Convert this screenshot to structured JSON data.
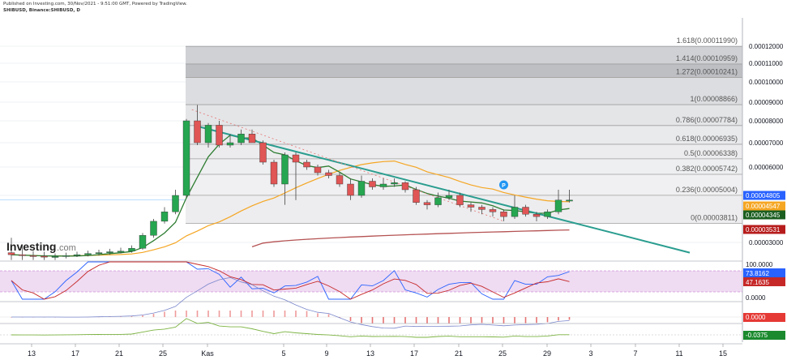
{
  "header": {
    "published_line": "Published on Investing.com, 30/Nov/2021 - 9:51:00 GMT, Powered by TradingView.",
    "symbol_line": "SHIBUSD, Binance:SHIBUSD, D"
  },
  "logo": {
    "name": "Investing",
    "suffix": ".com"
  },
  "price_axis": {
    "labels": [
      "0.00012000",
      "0.00011000",
      "0.00010000",
      "0.00009000",
      "0.00008000",
      "0.00007000",
      "0.00006000",
      "0.00005000",
      "0.00003000"
    ],
    "ticks": [
      0.00012,
      0.00011,
      0.0001,
      9e-05,
      8e-05,
      7e-05,
      6e-05,
      5e-05,
      3e-05
    ]
  },
  "price_tags": [
    {
      "label": "0.00004805",
      "value": 4.805e-05,
      "color": "#2962ff"
    },
    {
      "label": "0.00004547",
      "value": 4.547e-05,
      "color": "#f5a623"
    },
    {
      "label": "0.00004345",
      "value": 4.345e-05,
      "color": "#1b5e20"
    },
    {
      "label": "0.00003531",
      "value": 3.531e-05,
      "color": "#b71c1c"
    }
  ],
  "date_axis": {
    "labels": [
      "13",
      "17",
      "21",
      "25",
      "Kas",
      "5",
      "9",
      "13",
      "17",
      "21",
      "25",
      "29",
      "3",
      "7",
      "11",
      "15"
    ]
  },
  "fib": {
    "levels": [
      {
        "label": "1.618(0.00011990)",
        "value": 0.0001199
      },
      {
        "label": "1.414(0.00010959)",
        "value": 0.00010959
      },
      {
        "label": "1.272(0.00010241)",
        "value": 0.00010241
      },
      {
        "label": "1(0.00008866)",
        "value": 8.866e-05
      },
      {
        "label": "0.786(0.00007784)",
        "value": 7.784e-05
      },
      {
        "label": "0.618(0.00006935)",
        "value": 6.935e-05
      },
      {
        "label": "0.5(0.00006338)",
        "value": 6.338e-05
      },
      {
        "label": "0.382(0.00005742)",
        "value": 5.742e-05
      },
      {
        "label": "0.236(0.00005004)",
        "value": 5.004e-05
      },
      {
        "label": "0(0.00003811)",
        "value": 3.811e-05
      }
    ]
  },
  "marker": {
    "label": "P",
    "color": "#2196f3"
  },
  "rsi": {
    "labels": [
      "100.0000",
      "73.8162",
      "47.1635",
      "0.0000"
    ],
    "k": 73.8162,
    "d": 47.1635,
    "colors": [
      "#2962ff",
      "#c62828"
    ]
  },
  "macd": {
    "label": "0.0000",
    "value": 0.0,
    "color": "#e53935"
  },
  "osc": {
    "label": "-0.0375",
    "value": -0.0375,
    "color": "#1b8a2e"
  },
  "colors": {
    "up": "#26a650",
    "down": "#e05555",
    "trendline": "#2a9d8f",
    "ma_short": "#2e7d32",
    "ma_mid": "#f5a623",
    "ma_long": "#b55252"
  },
  "chart_data": {
    "type": "candlestick",
    "symbol": "SHIBUSD",
    "timeframe": "D",
    "ylim": [
      2e-05,
      0.00012
    ],
    "x": [
      "10",
      "11",
      "12",
      "13",
      "14",
      "15",
      "16",
      "17",
      "18",
      "19",
      "20",
      "21",
      "22",
      "23",
      "24",
      "25",
      "26",
      "27",
      "28",
      "29",
      "30",
      "31",
      "Kas",
      "2",
      "3",
      "4",
      "5",
      "6",
      "7",
      "8",
      "9",
      "10",
      "11",
      "12",
      "13",
      "14",
      "15",
      "16",
      "17",
      "18",
      "19",
      "20",
      "21",
      "22",
      "23",
      "24",
      "25",
      "26",
      "27",
      "28",
      "29",
      "30"
    ],
    "open": [
      2.65e-05,
      2.58e-05,
      2.55e-05,
      2.53e-05,
      2.5e-05,
      2.52e-05,
      2.55e-05,
      2.58e-05,
      2.62e-05,
      2.65e-05,
      2.68e-05,
      2.7e-05,
      2.8e-05,
      3.3e-05,
      3.9e-05,
      4.3e-05,
      5e-05,
      8e-05,
      7e-05,
      7.8e-05,
      6.9e-05,
      7e-05,
      7.4e-05,
      7e-05,
      6.2e-05,
      5.4e-05,
      6.5e-05,
      6.2e-05,
      6e-05,
      5.8e-05,
      5.7e-05,
      5.4e-05,
      5e-05,
      5.5e-05,
      5.3e-05,
      5.4e-05,
      5.45e-05,
      5.2e-05,
      4.7e-05,
      4.6e-05,
      4.9e-05,
      5e-05,
      4.6e-05,
      4.5e-05,
      4.4e-05,
      4.3e-05,
      4.1e-05,
      4.5e-05,
      4.2e-05,
      4.1e-05,
      4.3e-05,
      4.8e-05
    ],
    "high": [
      3.2e-05,
      2.9e-05,
      2.7e-05,
      2.68e-05,
      2.62e-05,
      2.65e-05,
      2.68e-05,
      2.72e-05,
      2.75e-05,
      2.78e-05,
      2.82e-05,
      2.9e-05,
      3.4e-05,
      4e-05,
      4.5e-05,
      5.2e-05,
      8.1e-05,
      8.85e-05,
      7.9e-05,
      8e-05,
      7.4e-05,
      7.6e-05,
      7.6e-05,
      7.1e-05,
      6.3e-05,
      6.6e-05,
      6.6e-05,
      6.3e-05,
      6.1e-05,
      5.9e-05,
      5.8e-05,
      5.6e-05,
      5.7e-05,
      5.6e-05,
      5.6e-05,
      5.6e-05,
      5.5e-05,
      5.3e-05,
      4.8e-05,
      5.1e-05,
      5.2e-05,
      5.1e-05,
      4.7e-05,
      4.6e-05,
      4.5e-05,
      4.4e-05,
      5e-05,
      4.6e-05,
      4.3e-05,
      4.4e-05,
      5.2e-05,
      5.2e-05
    ],
    "low": [
      2.4e-05,
      2.4e-05,
      2.4e-05,
      2.4e-05,
      2.4e-05,
      2.45e-05,
      2.5e-05,
      2.52e-05,
      2.55e-05,
      2.58e-05,
      2.62e-05,
      2.65e-05,
      2.75e-05,
      3.2e-05,
      3.8e-05,
      4.2e-05,
      4.9e-05,
      6.9e-05,
      6.8e-05,
      6.8e-05,
      6.8e-05,
      6.9e-05,
      7e-05,
      6.1e-05,
      5.3e-05,
      4.6e-05,
      4.8e-05,
      5.9e-05,
      5.7e-05,
      5.6e-05,
      5.3e-05,
      4.8e-05,
      4.9e-05,
      5.2e-05,
      5.2e-05,
      5.3e-05,
      5.1e-05,
      4.6e-05,
      4.4e-05,
      4.5e-05,
      4.8e-05,
      4.5e-05,
      4.3e-05,
      4.2e-05,
      4.1e-05,
      3.9e-05,
      4e-05,
      4.1e-05,
      3.9e-05,
      4e-05,
      4.2e-05,
      4.7e-05
    ],
    "close": [
      2.58e-05,
      2.55e-05,
      2.53e-05,
      2.5e-05,
      2.52e-05,
      2.55e-05,
      2.58e-05,
      2.62e-05,
      2.65e-05,
      2.68e-05,
      2.7e-05,
      2.8e-05,
      3.3e-05,
      3.9e-05,
      4.3e-05,
      5e-05,
      8e-05,
      7e-05,
      7.8e-05,
      6.9e-05,
      7e-05,
      7.4e-05,
      7e-05,
      6.2e-05,
      5.4e-05,
      6.5e-05,
      6.2e-05,
      6e-05,
      5.8e-05,
      5.7e-05,
      5.4e-05,
      5e-05,
      5.5e-05,
      5.3e-05,
      5.4e-05,
      5.45e-05,
      5.2e-05,
      4.7e-05,
      4.6e-05,
      4.9e-05,
      5e-05,
      4.6e-05,
      4.5e-05,
      4.4e-05,
      4.3e-05,
      4.1e-05,
      4.5e-05,
      4.2e-05,
      4.1e-05,
      4.3e-05,
      4.8e-05,
      4.8e-05
    ],
    "indicators": {
      "ma_short_last": 4.345e-05,
      "ma_mid_last": 4.547e-05,
      "ma_long_last": 3.531e-05,
      "rsi_k": 73.8162,
      "rsi_d": 47.1635,
      "macd": 0.0,
      "oscillator": -0.0375
    },
    "fib_retracement": {
      "high": 8.866e-05,
      "low": 3.811e-05
    },
    "grid": true
  }
}
